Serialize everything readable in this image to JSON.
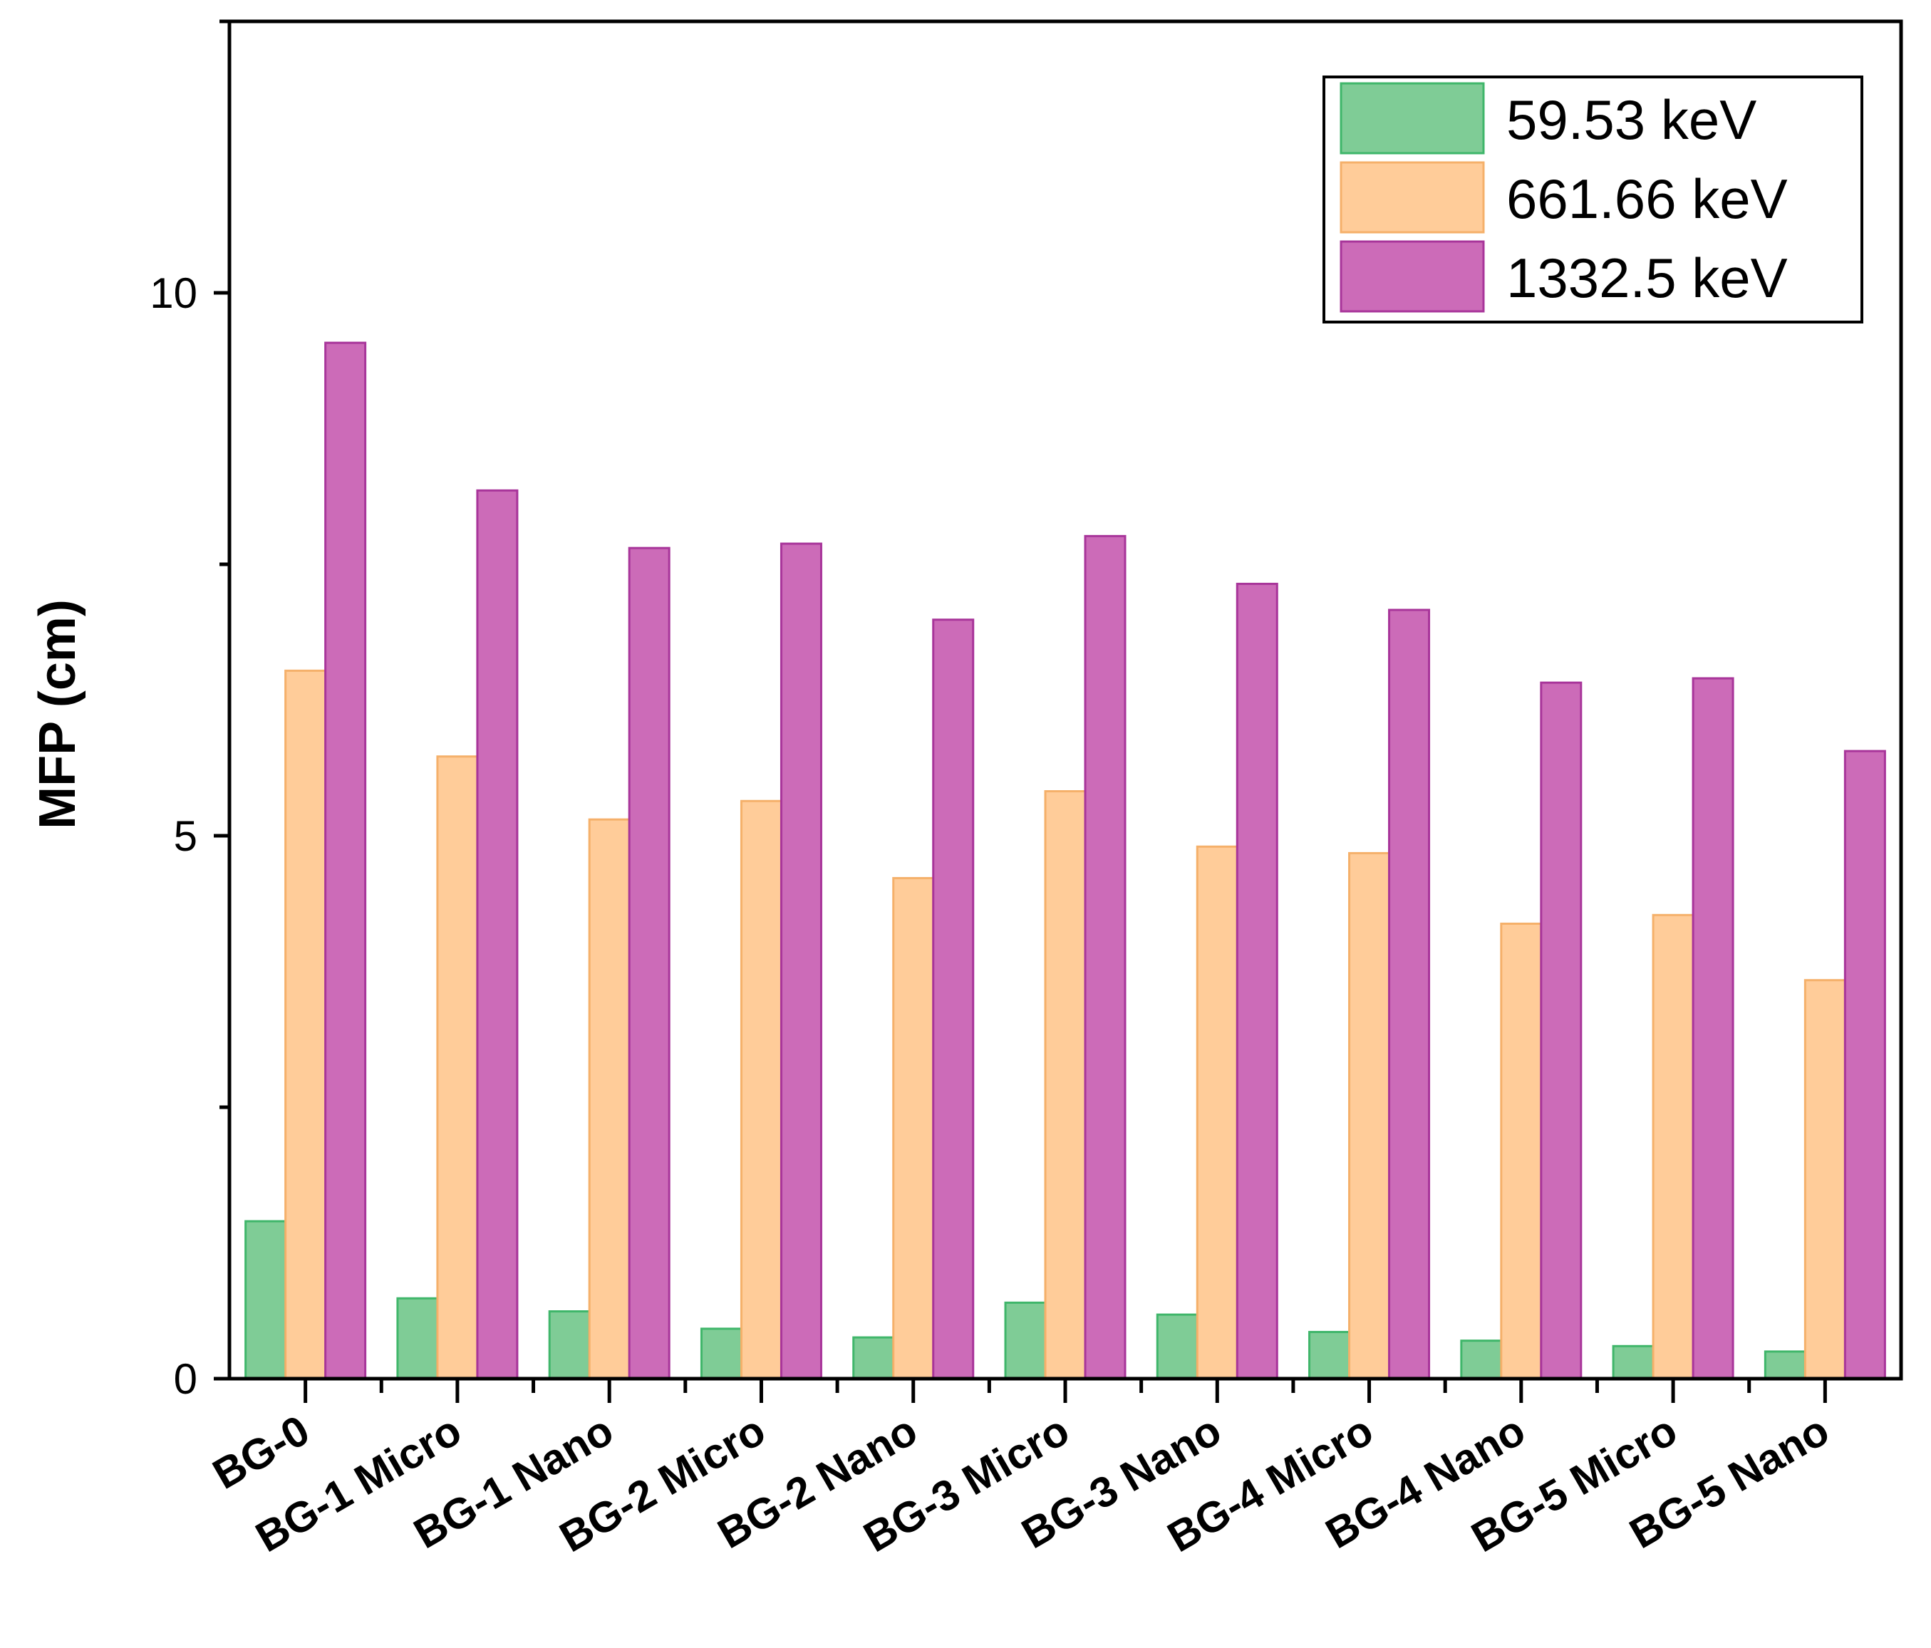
{
  "chart_data": {
    "type": "bar",
    "title": "",
    "xlabel": "",
    "ylabel": "MFP (cm)",
    "ylim": [
      0,
      12.5
    ],
    "yticks": [
      0,
      5,
      10
    ],
    "ytick_labels": [
      "0",
      "5",
      "10"
    ],
    "minor_step": 2.5,
    "grid": false,
    "legend_position": "top-right",
    "categories": [
      "BG-0",
      "BG-1 Micro",
      "BG-1 Nano",
      "BG-2 Micro",
      "BG-2 Nano",
      "BG-3 Micro",
      "BG-3 Nano",
      "BG-4 Micro",
      "BG-4 Nano",
      "BG-5 Micro",
      "BG-5 Nano"
    ],
    "series": [
      {
        "name": "59.53 keV",
        "fill": "#7fcc96",
        "stroke": "#3fb66a",
        "values": [
          1.45,
          0.74,
          0.62,
          0.46,
          0.38,
          0.7,
          0.59,
          0.43,
          0.35,
          0.3,
          0.25
        ]
      },
      {
        "name": "661.66 keV",
        "fill": "#ffcc99",
        "stroke": "#f5b06a",
        "values": [
          6.52,
          5.73,
          5.15,
          5.32,
          4.61,
          5.41,
          4.9,
          4.84,
          4.19,
          4.27,
          3.67
        ]
      },
      {
        "name": "1332.5 keV",
        "fill": "#cc6bb8",
        "stroke": "#a8359a",
        "values": [
          9.54,
          8.18,
          7.65,
          7.69,
          6.99,
          7.76,
          7.32,
          7.08,
          6.41,
          6.45,
          5.78
        ]
      }
    ]
  }
}
